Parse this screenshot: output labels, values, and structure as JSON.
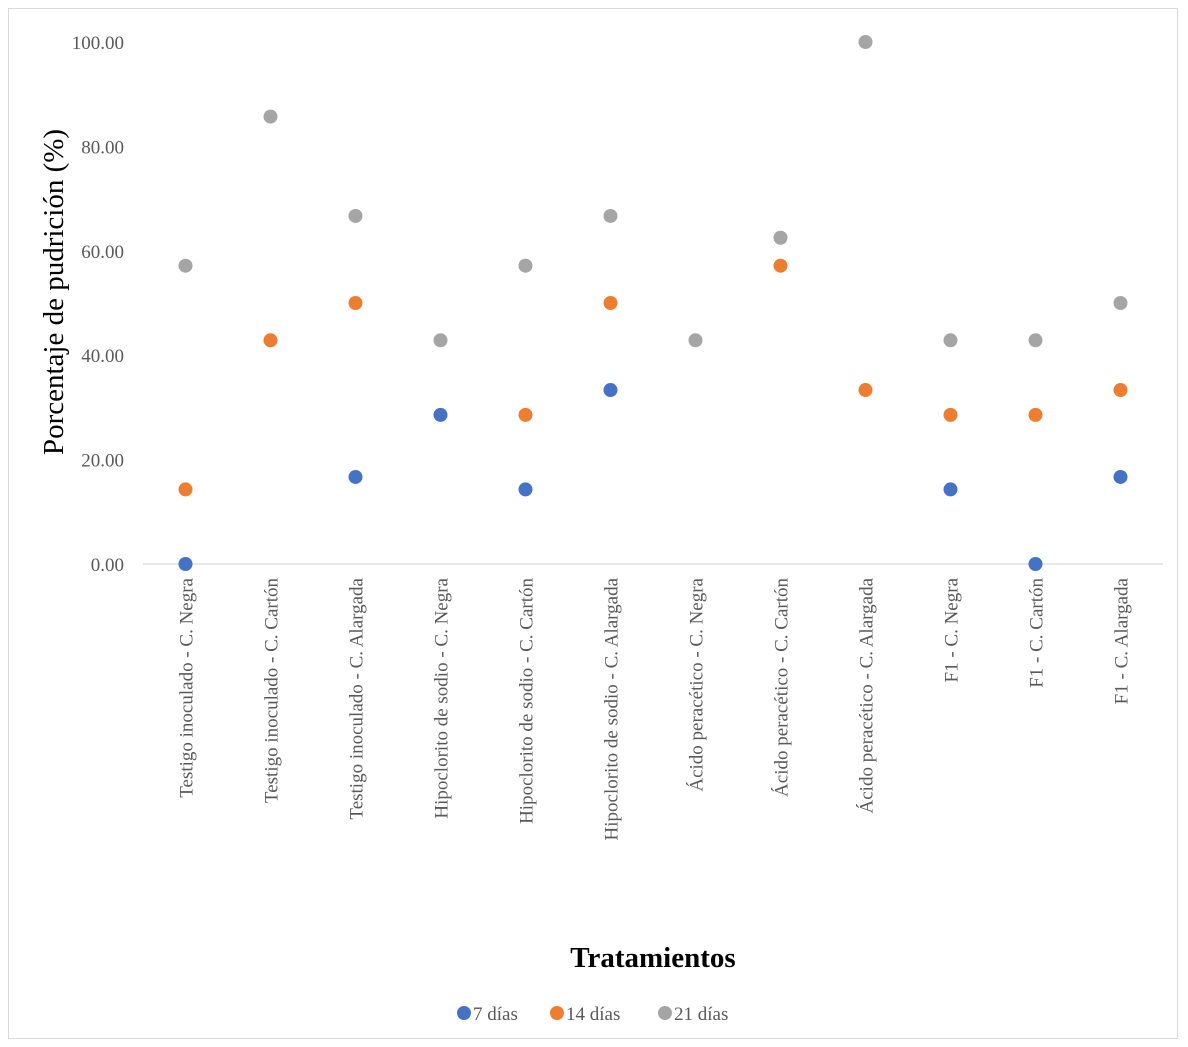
{
  "chart_data": {
    "type": "scatter",
    "xlabel": "Tratamientos",
    "ylabel": "Porcentaje de pudrición (%)",
    "ylim": [
      0,
      100
    ],
    "yticks": [
      "0.00",
      "20.00",
      "40.00",
      "60.00",
      "80.00",
      "100.00"
    ],
    "grid": false,
    "legend_position": "bottom",
    "categories": [
      "Testigo inoculado - C. Negra",
      "Testigo inoculado - C. Cartón",
      "Testigo inoculado - C. Alargada",
      "Hipoclorito de sodio - C. Negra",
      "Hipoclorito de sodio - C. Cartón",
      "Hipoclorito de sodio - C. Alargada",
      "Ácido peracético - C. Negra",
      "Ácido peracético - C. Cartón",
      "Ácido peracético - C. Alargada",
      "F1 - C. Negra",
      "F1 - C. Cartón",
      "F1 - C. Alargada"
    ],
    "series": [
      {
        "name": "7 días",
        "color": "#4472C4",
        "values": [
          0,
          null,
          16.67,
          28.57,
          14.29,
          33.33,
          null,
          null,
          null,
          14.29,
          0,
          16.67
        ]
      },
      {
        "name": "14 días",
        "color": "#ED7D31",
        "values": [
          14.29,
          42.86,
          50,
          null,
          28.57,
          50,
          null,
          57.14,
          33.33,
          28.57,
          28.57,
          33.33
        ]
      },
      {
        "name": "21 días",
        "color": "#A5A5A5",
        "values": [
          57.14,
          85.71,
          66.67,
          42.86,
          57.14,
          66.67,
          42.86,
          62.5,
          100,
          42.86,
          42.86,
          50
        ]
      }
    ]
  }
}
